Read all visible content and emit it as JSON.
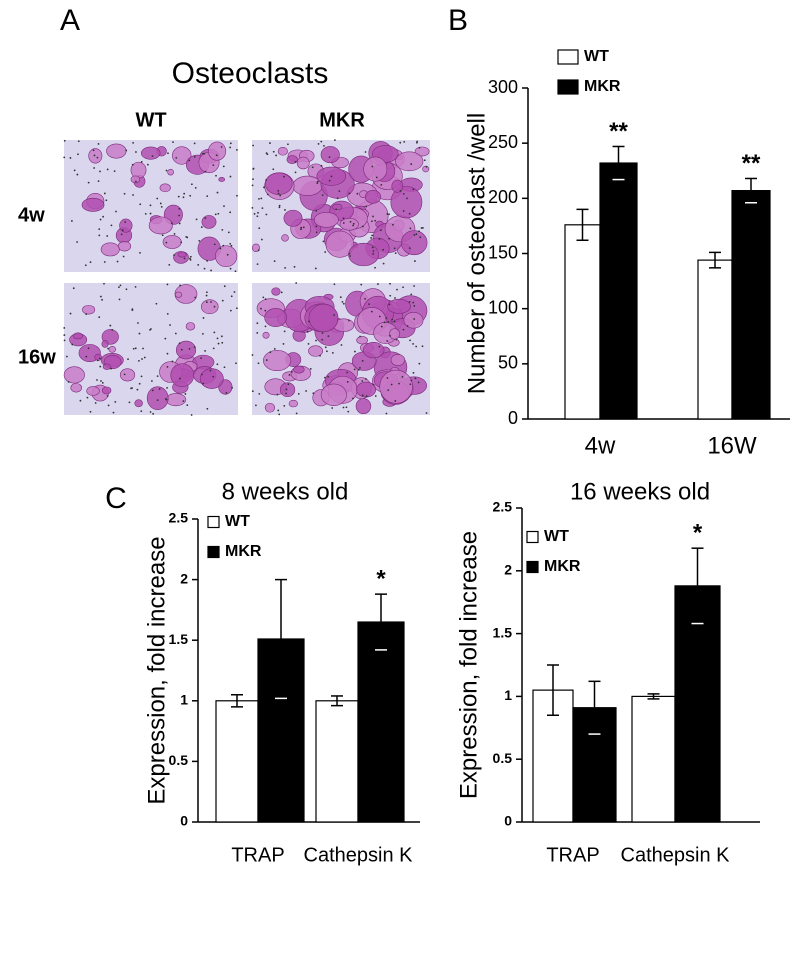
{
  "panel_labels": [
    "A",
    "B",
    "C"
  ],
  "images": {
    "title": "Osteoclasts",
    "columns": [
      "WT",
      "MKR"
    ],
    "rows": [
      "4w",
      "16w"
    ]
  },
  "chart_data": [
    {
      "type": "bar",
      "y_label": "Number of osteoclast /well",
      "categories": [
        "4w",
        "16W"
      ],
      "series": [
        {
          "name": "WT",
          "color": "#ffffff",
          "values": [
            176,
            144
          ],
          "errors": [
            14,
            7
          ]
        },
        {
          "name": "MKR",
          "color": "#000000",
          "values": [
            232,
            207
          ],
          "errors": [
            15,
            11
          ],
          "annotations": [
            "**",
            "**"
          ]
        }
      ],
      "ylim": [
        0,
        300
      ],
      "yticks": [
        0,
        50,
        100,
        150,
        200,
        250,
        300
      ],
      "grid": false,
      "legend": "top-left"
    },
    {
      "type": "bar",
      "title": "8 weeks old",
      "y_label": "Expression, fold increase",
      "categories": [
        "TRAP",
        "Cathepsin K"
      ],
      "series": [
        {
          "name": "WT",
          "color": "#ffffff",
          "values": [
            1.0,
            1.0
          ],
          "errors": [
            0.05,
            0.04
          ]
        },
        {
          "name": "MKR",
          "color": "#000000",
          "values": [
            1.51,
            1.65
          ],
          "errors": [
            0.49,
            0.23
          ],
          "annotations": [
            null,
            "*"
          ]
        }
      ],
      "ylim": [
        0,
        2.5
      ],
      "yticks": [
        0,
        0.5,
        1,
        1.5,
        2,
        2.5
      ],
      "grid": false,
      "legend": "top-left"
    },
    {
      "type": "bar",
      "title": "16 weeks old",
      "y_label": "Expression, fold increase",
      "categories": [
        "TRAP",
        "Cathepsin K"
      ],
      "series": [
        {
          "name": "WT",
          "color": "#ffffff",
          "values": [
            1.05,
            1.0
          ],
          "errors": [
            0.2,
            0.02
          ]
        },
        {
          "name": "MKR",
          "color": "#000000",
          "values": [
            0.91,
            1.88
          ],
          "errors": [
            0.21,
            0.3
          ],
          "annotations": [
            null,
            "*"
          ]
        }
      ],
      "ylim": [
        0,
        2.5
      ],
      "yticks": [
        0,
        0.5,
        1,
        1.5,
        2,
        2.5
      ],
      "grid": false,
      "legend": "top-left"
    }
  ]
}
